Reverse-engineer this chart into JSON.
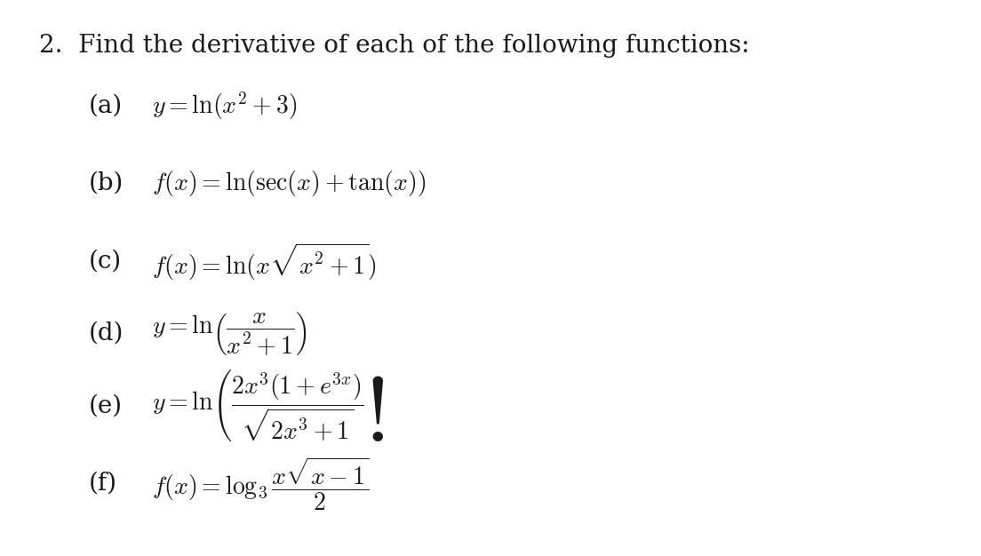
{
  "background_color": "#ffffff",
  "title_text": "2.\\enspace Find the derivative of each of the following functions:",
  "items": [
    {
      "label": "(a)",
      "formula": "$y = \\\\ln(x^2 + 3)$"
    },
    {
      "label": "(b)",
      "formula": "$f(x) = \\\\ln(\\\\sec(x) + \\\\tan(x))$"
    },
    {
      "label": "(c)",
      "formula": "$f(x) = \\\\ln(x\\\\sqrt{x^2 + 1})$"
    },
    {
      "label": "(d)",
      "formula": "$y = \\\\ln\\\\!\\\\left(\\\\dfrac{x}{x^2+1}\\\\right)$"
    },
    {
      "label": "(e)",
      "formula": "$y = \\\\ln\\\\!\\\\left(\\\\dfrac{2x^3(1+e^{3x})}{\\\\sqrt{2x^3+1}}\\\\right)$"
    },
    {
      "label": "(f)",
      "formula": "$f(x) = \\\\log_3 \\\\dfrac{x\\\\sqrt{x-1}}{2}$"
    }
  ],
  "font_size_title": 20,
  "font_size_items": 20,
  "text_color": "#1a1a1a",
  "fig_width": 11.04,
  "fig_height": 6.26
}
